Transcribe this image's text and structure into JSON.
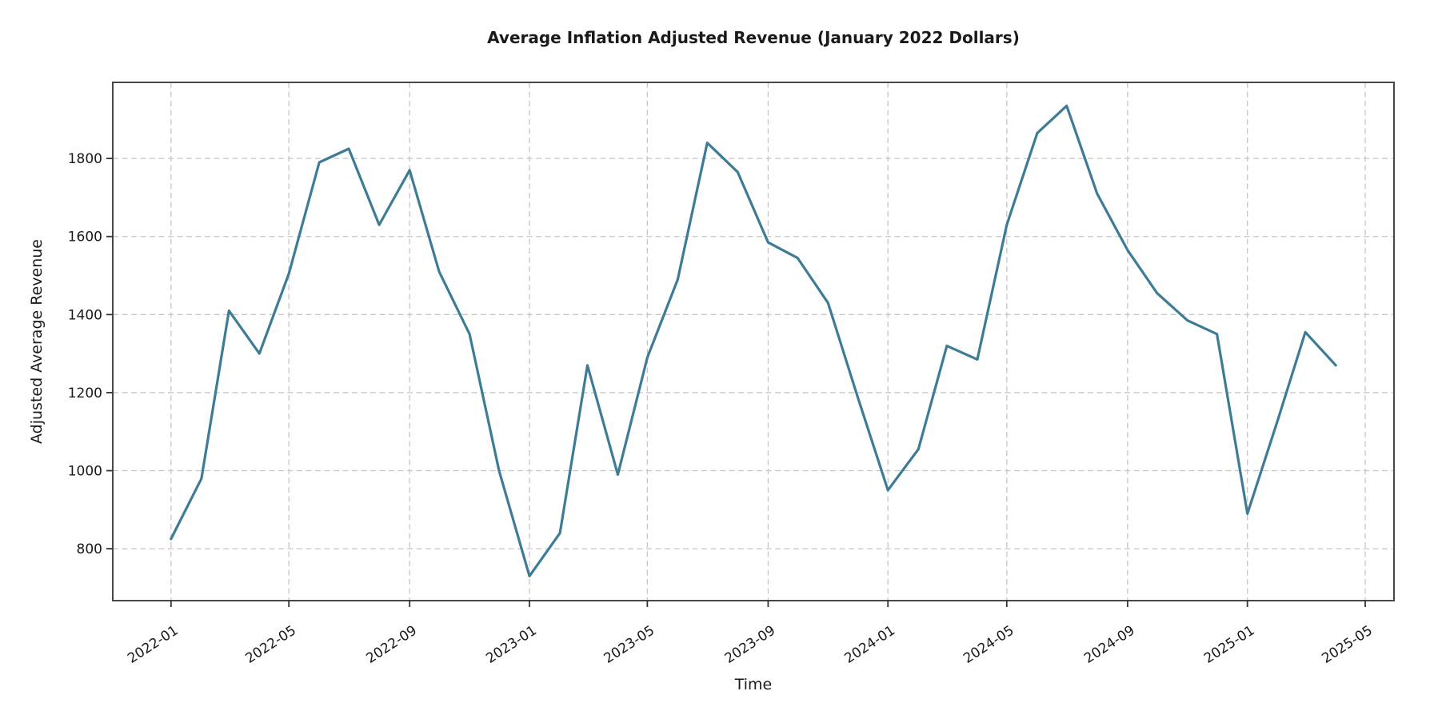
{
  "chart_data": {
    "type": "line",
    "title": "Average Inflation Adjusted Revenue (January 2022 Dollars)",
    "xlabel": "Time",
    "ylabel": "Adjusted Average Revenue",
    "x": [
      "2022-01",
      "2022-02",
      "2022-03",
      "2022-04",
      "2022-05",
      "2022-06",
      "2022-07",
      "2022-08",
      "2022-09",
      "2022-10",
      "2022-11",
      "2022-12",
      "2023-01",
      "2023-02",
      "2023-03",
      "2023-04",
      "2023-05",
      "2023-06",
      "2023-07",
      "2023-08",
      "2023-09",
      "2023-10",
      "2023-11",
      "2023-12",
      "2024-01",
      "2024-02",
      "2024-03",
      "2024-04",
      "2024-05",
      "2024-06",
      "2024-07",
      "2024-08",
      "2024-09",
      "2024-10",
      "2024-11",
      "2024-12",
      "2025-01",
      "2025-02",
      "2025-03",
      "2025-04"
    ],
    "values": [
      825,
      980,
      1410,
      1300,
      1505,
      1790,
      1825,
      1630,
      1770,
      1510,
      1350,
      1000,
      730,
      840,
      1270,
      990,
      1290,
      1490,
      1840,
      1765,
      1585,
      1545,
      1430,
      1190,
      950,
      1055,
      1320,
      1285,
      1630,
      1865,
      1935,
      1710,
      1565,
      1455,
      1385,
      1350,
      890,
      1130,
      1355,
      1270
    ],
    "x_ticks": [
      "2022-01",
      "2022-05",
      "2022-09",
      "2023-01",
      "2023-05",
      "2023-09",
      "2024-01",
      "2024-05",
      "2024-09",
      "2025-01",
      "2025-05"
    ],
    "y_ticks": [
      800,
      1000,
      1200,
      1400,
      1600,
      1800
    ],
    "ylim": [
      667,
      1995
    ],
    "x_margin_frac": 0.05,
    "grid": true,
    "grid_style": "dashed",
    "legend": "none",
    "line_color": "#3e7c96",
    "grid_color": "#c6c6c6",
    "spine_color": "#343434",
    "text_color": "#1a1a1a"
  }
}
